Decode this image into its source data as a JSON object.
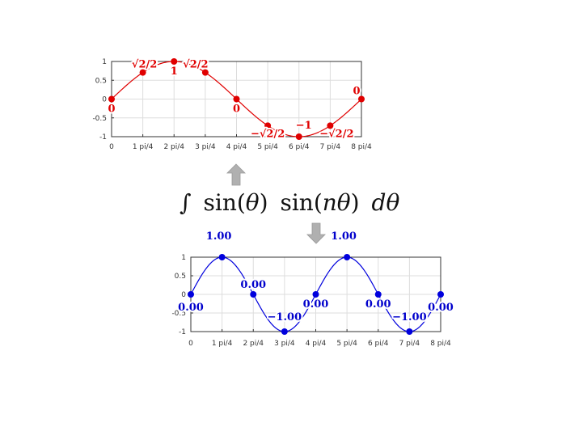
{
  "formula": {
    "integral": "∫",
    "sin1": "sin(",
    "theta1": "θ",
    "close1": ")",
    "sin2": "sin(",
    "ntheta": "nθ",
    "close2": ")",
    "d": "d",
    "theta3": "θ"
  },
  "chart_data": [
    {
      "type": "line",
      "color": "#e00000",
      "x_ticks": [
        "0",
        "1 pi/4",
        "2 pi/4",
        "3 pi/4",
        "4 pi/4",
        "5 pi/4",
        "6 pi/4",
        "7 pi/4",
        "8 pi/4"
      ],
      "y_ticks": [
        "1",
        "0.5",
        "0",
        "-0.5",
        "-1"
      ],
      "ylim": [
        -1,
        1
      ],
      "xlim": [
        0,
        8
      ],
      "grid": true,
      "points_x": [
        0,
        1,
        2,
        3,
        4,
        5,
        6,
        7,
        8
      ],
      "points_y": [
        0,
        0.707,
        1,
        0.707,
        0,
        -0.707,
        -1,
        -0.707,
        0
      ],
      "curve": "sin(x*pi/4)",
      "data_labels": [
        "0",
        "√2/2",
        "1",
        "√2/2",
        "0",
        "−√2/2",
        "−1",
        "−√2/2",
        "0"
      ]
    },
    {
      "type": "line",
      "color": "#0000dd",
      "x_ticks": [
        "0",
        "1 pi/4",
        "2 pi/4",
        "3 pi/4",
        "4 pi/4",
        "5 pi/4",
        "6 pi/4",
        "7 pi/4",
        "8 pi/4"
      ],
      "y_ticks": [
        "1",
        "0.5",
        "0",
        "-0.5",
        "-1"
      ],
      "ylim": [
        -1,
        1
      ],
      "xlim": [
        0,
        8
      ],
      "grid": true,
      "points_x": [
        0,
        1,
        2,
        3,
        4,
        5,
        6,
        7,
        8
      ],
      "points_y": [
        0,
        1,
        0,
        -1,
        0,
        1,
        0,
        -1,
        0
      ],
      "curve": "sin(x*pi/2)",
      "data_labels": [
        "0.00",
        "1.00",
        "0.00",
        "−1.00",
        "0.00",
        "1.00",
        "0.00",
        "−1.00",
        "0.00"
      ]
    }
  ]
}
